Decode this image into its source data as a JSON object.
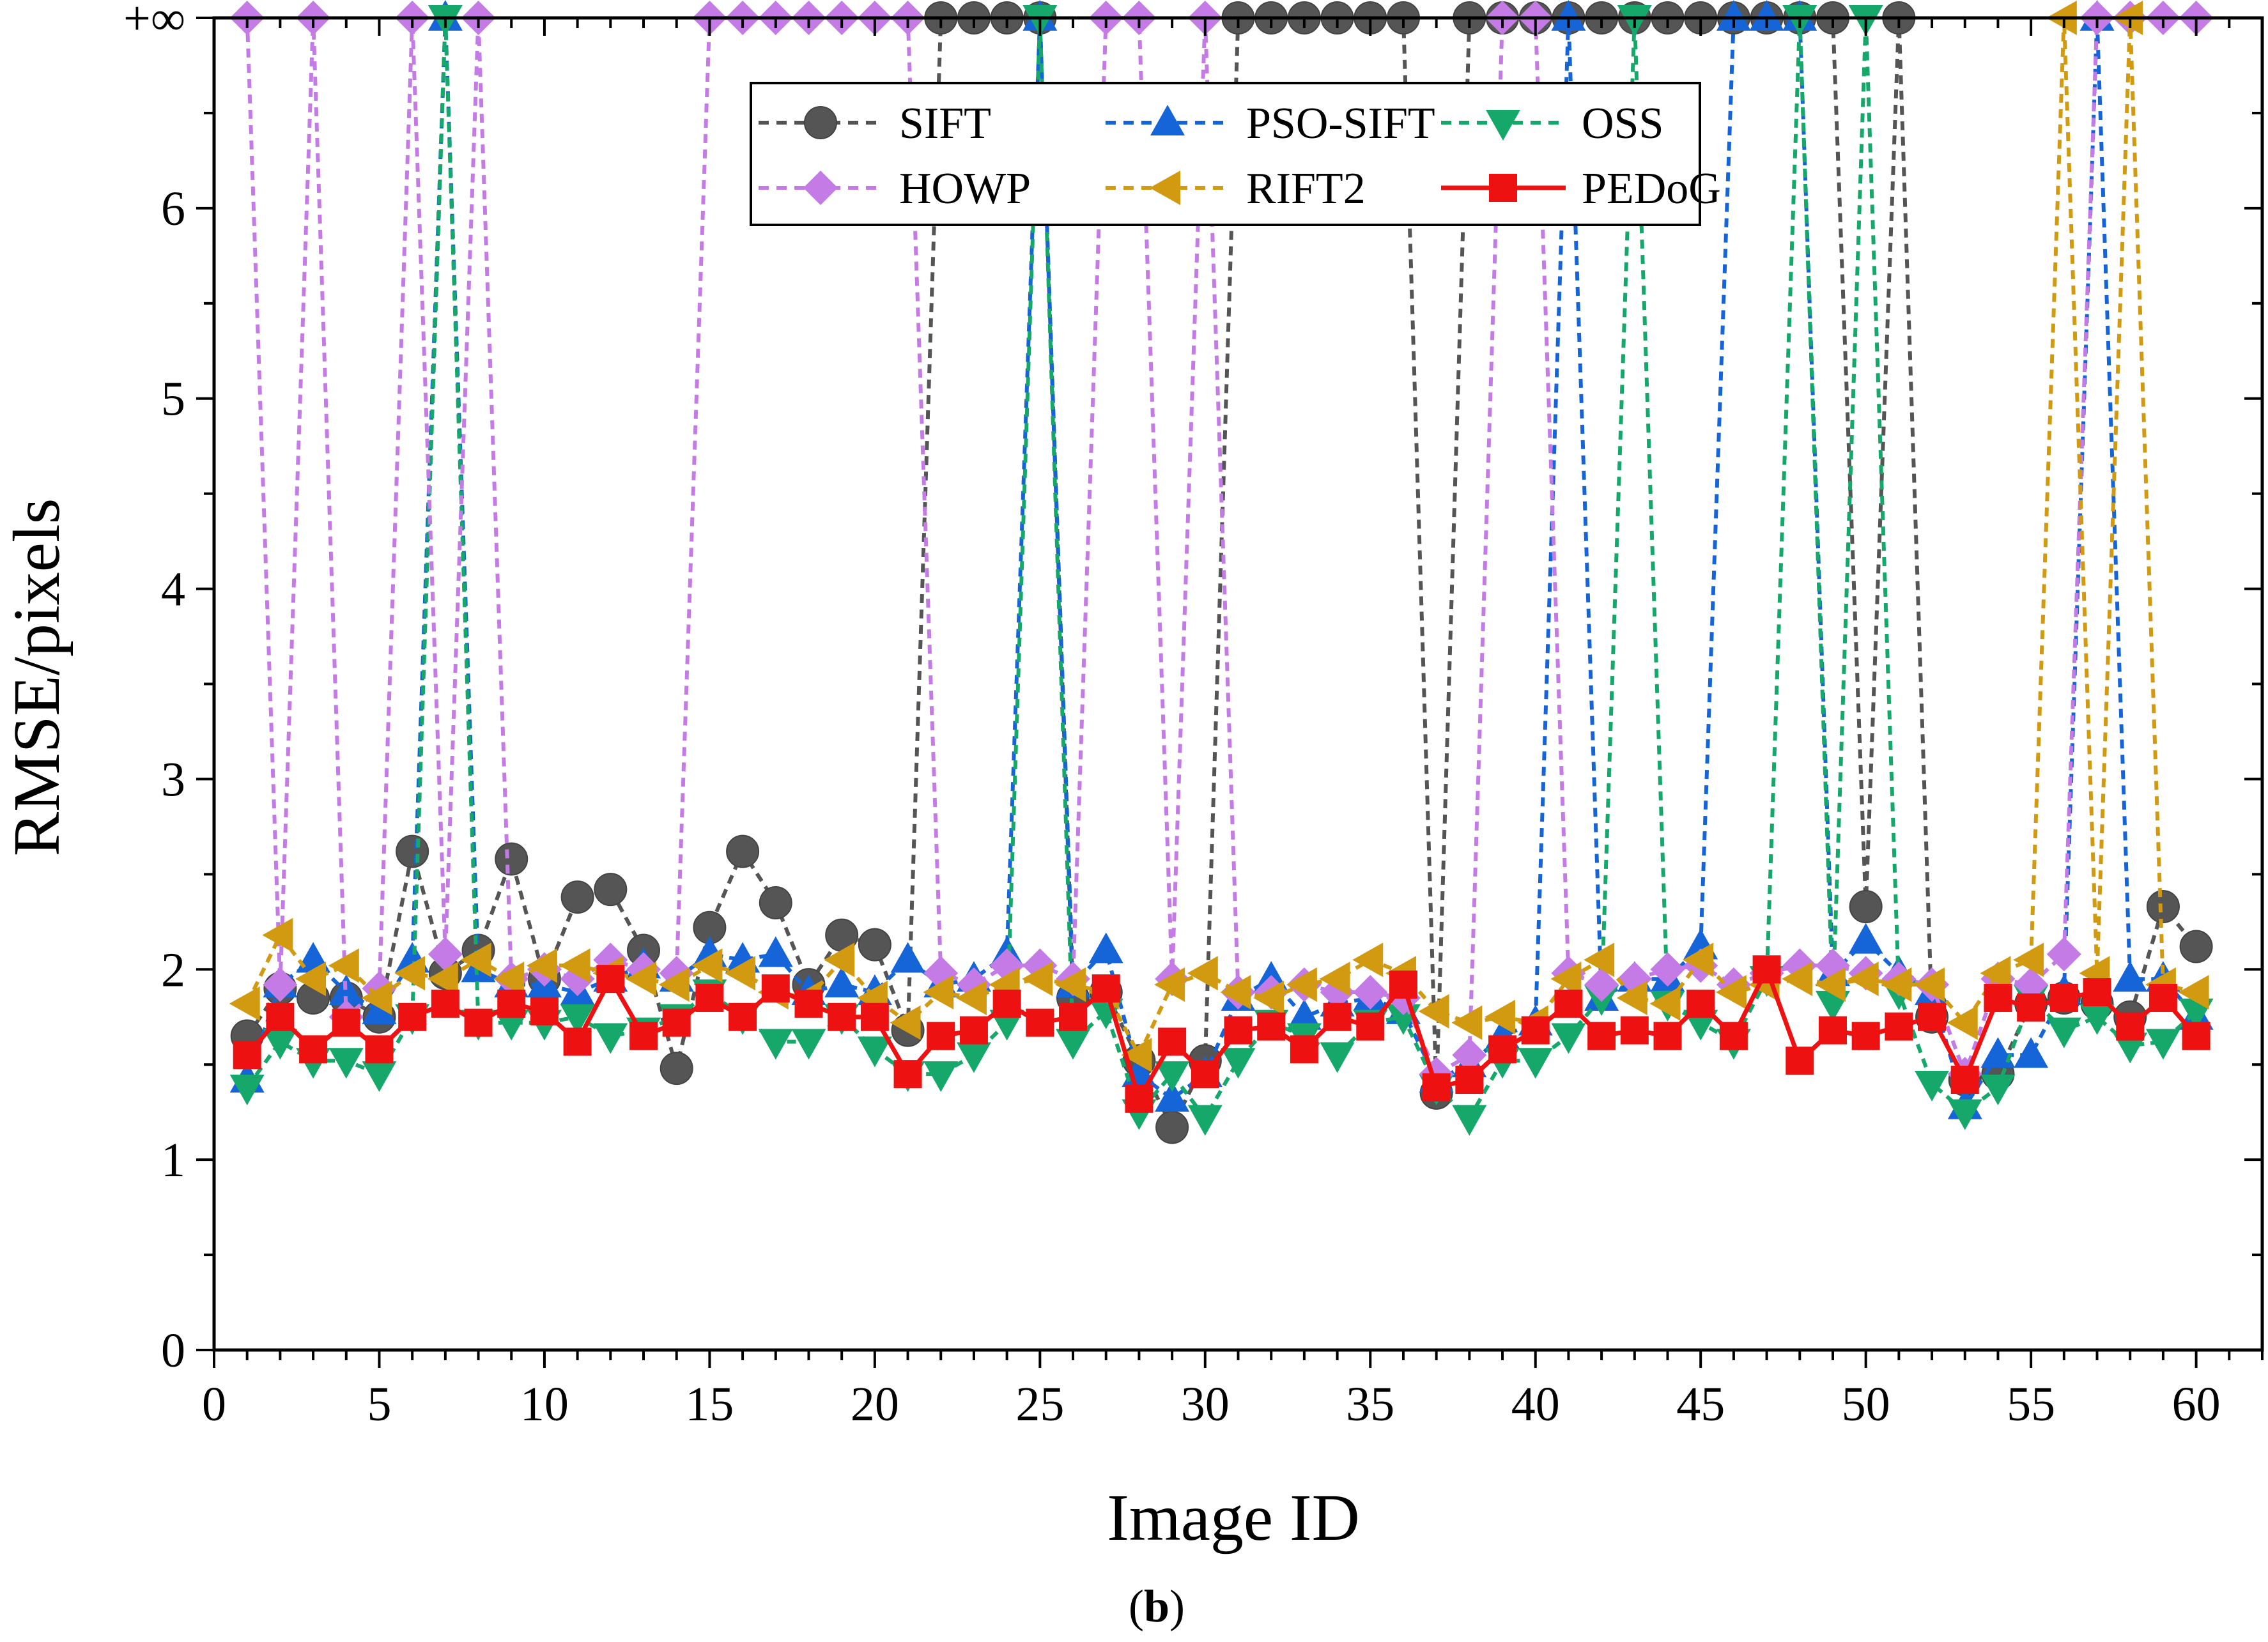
{
  "chart_data": {
    "type": "line",
    "xlabel": "Image ID",
    "ylabel": "RMSE/pixels",
    "caption_open": "(",
    "caption_bold": "b",
    "caption_close": ")",
    "xlim": [
      0,
      62
    ],
    "ylim": [
      0,
      7
    ],
    "inf_value": 7,
    "x_ticks": [
      0,
      5,
      10,
      15,
      20,
      25,
      30,
      35,
      40,
      45,
      50,
      55,
      60
    ],
    "y_ticks": [
      0,
      1,
      2,
      3,
      4,
      5,
      6
    ],
    "inf_tick_label": "+∞",
    "series": [
      {
        "name": "SIFT",
        "color": "#555555",
        "dash": "dash",
        "marker": "circle",
        "values": [
          1.65,
          1.9,
          1.85,
          1.85,
          1.75,
          2.62,
          1.98,
          2.1,
          2.58,
          1.95,
          2.38,
          2.42,
          2.1,
          1.48,
          2.22,
          2.62,
          2.35,
          1.92,
          2.18,
          2.13,
          1.68,
          "inf",
          "inf",
          "inf",
          "inf",
          1.85,
          1.88,
          1.52,
          1.17,
          1.52,
          "inf",
          "inf",
          "inf",
          "inf",
          "inf",
          "inf",
          1.35,
          "inf",
          "inf",
          "inf",
          "inf",
          "inf",
          "inf",
          "inf",
          "inf",
          "inf",
          "inf",
          "inf",
          "inf",
          2.33,
          "inf",
          1.75,
          1.42,
          1.45,
          1.82,
          1.85,
          1.82,
          1.75,
          2.33,
          2.12
        ]
      },
      {
        "name": "PSO-SIFT",
        "color": "#1565d8",
        "dash": "dash",
        "marker": "triangle-up",
        "values": [
          1.42,
          1.92,
          2.05,
          1.88,
          1.78,
          2.05,
          "inf",
          2.0,
          1.92,
          1.92,
          1.88,
          1.95,
          2.02,
          1.95,
          2.08,
          2.05,
          2.08,
          1.88,
          1.92,
          1.88,
          2.05,
          1.92,
          1.95,
          2.08,
          "inf",
          1.92,
          2.1,
          1.45,
          1.32,
          1.45,
          1.85,
          1.95,
          1.75,
          1.82,
          1.85,
          1.78,
          1.42,
          1.5,
          1.65,
          1.72,
          "inf",
          1.85,
          1.95,
          1.95,
          2.12,
          "inf",
          "inf",
          "inf",
          1.98,
          2.15,
          1.98,
          1.88,
          1.28,
          1.55,
          1.55,
          1.88,
          "inf",
          1.95,
          1.95,
          1.75
        ]
      },
      {
        "name": "OSS",
        "color": "#15a86a",
        "dash": "dash",
        "marker": "triangle-down",
        "values": [
          1.38,
          1.62,
          1.52,
          1.52,
          1.45,
          1.75,
          "inf",
          1.72,
          1.72,
          1.72,
          1.75,
          1.65,
          1.68,
          1.75,
          1.88,
          1.75,
          1.62,
          1.62,
          1.75,
          1.58,
          1.45,
          1.45,
          1.55,
          1.72,
          "inf",
          1.62,
          1.78,
          1.25,
          1.45,
          1.22,
          1.52,
          1.72,
          1.65,
          1.55,
          1.72,
          1.75,
          1.38,
          1.22,
          1.52,
          1.52,
          1.65,
          1.85,
          "inf",
          1.82,
          1.72,
          1.62,
          1.95,
          "inf",
          1.82,
          "inf",
          1.88,
          1.4,
          1.25,
          1.38,
          1.85,
          1.68,
          1.75,
          1.6,
          1.62,
          1.78
        ]
      },
      {
        "name": "HOWP",
        "color": "#c47be6",
        "dash": "dash",
        "marker": "diamond",
        "values": [
          "inf",
          1.92,
          "inf",
          1.75,
          1.9,
          "inf",
          2.08,
          "inf",
          1.95,
          2.0,
          1.95,
          2.05,
          2.0,
          1.98,
          "inf",
          "inf",
          "inf",
          "inf",
          "inf",
          "inf",
          "inf",
          1.98,
          1.92,
          2.02,
          2.02,
          1.95,
          "inf",
          "inf",
          1.95,
          "inf",
          1.88,
          1.88,
          1.92,
          1.88,
          1.88,
          1.85,
          1.45,
          1.55,
          "inf",
          "inf",
          1.98,
          1.92,
          1.95,
          2.0,
          2.02,
          1.92,
          1.98,
          2.02,
          2.02,
          1.98,
          1.95,
          1.92,
          1.45,
          1.95,
          1.92,
          2.08,
          "inf",
          "inf",
          "inf",
          "inf"
        ]
      },
      {
        "name": "RIFT2",
        "color": "#d19a10",
        "dash": "dash",
        "marker": "triangle-left",
        "values": [
          1.82,
          2.18,
          1.95,
          2.02,
          1.85,
          1.98,
          1.95,
          2.05,
          1.95,
          2.02,
          2.02,
          1.98,
          1.95,
          1.92,
          2.02,
          1.98,
          1.88,
          1.85,
          2.05,
          1.85,
          1.72,
          1.88,
          1.85,
          1.92,
          1.95,
          1.92,
          1.88,
          1.55,
          1.92,
          1.98,
          1.88,
          1.85,
          1.92,
          1.95,
          2.05,
          1.98,
          1.78,
          1.72,
          1.75,
          1.72,
          1.95,
          2.05,
          1.85,
          1.82,
          2.05,
          1.88,
          1.92,
          1.95,
          1.92,
          1.95,
          1.92,
          1.92,
          1.72,
          1.98,
          2.05,
          "inf",
          1.98,
          "inf",
          1.92,
          1.88
        ]
      },
      {
        "name": "PEDoG",
        "color": "#ee1111",
        "dash": "solid",
        "marker": "square",
        "values": [
          1.55,
          1.75,
          1.58,
          1.72,
          1.58,
          1.75,
          1.82,
          1.72,
          1.82,
          1.78,
          1.62,
          1.95,
          1.65,
          1.72,
          1.85,
          1.75,
          1.9,
          1.82,
          1.75,
          1.75,
          1.45,
          1.65,
          1.68,
          1.82,
          1.72,
          1.75,
          1.9,
          1.32,
          1.62,
          1.45,
          1.68,
          1.7,
          1.58,
          1.75,
          1.7,
          1.92,
          1.38,
          1.42,
          1.58,
          1.68,
          1.82,
          1.65,
          1.68,
          1.65,
          1.82,
          1.65,
          2.0,
          1.52,
          1.68,
          1.65,
          1.7,
          1.75,
          1.42,
          1.85,
          1.8,
          1.85,
          1.88,
          1.7,
          1.85,
          1.65
        ]
      }
    ]
  }
}
